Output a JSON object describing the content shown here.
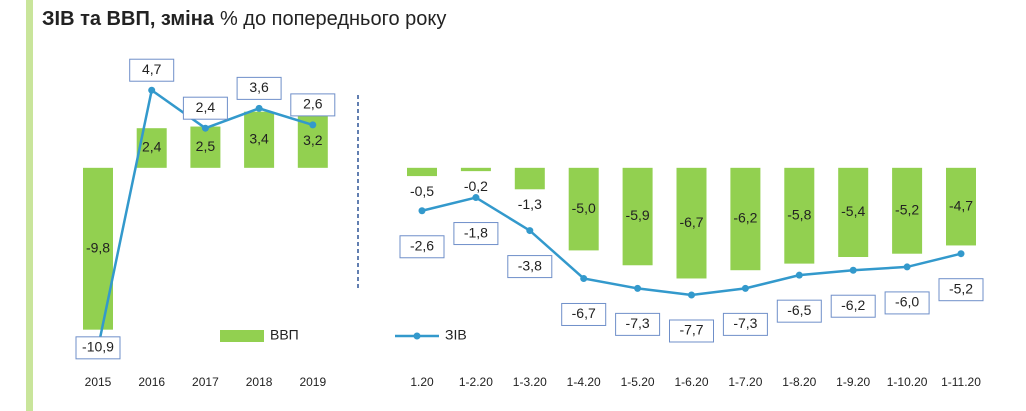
{
  "chart_data": {
    "type": "bar-line",
    "title": "ЗІВ та ВВП, зміна",
    "title_suffix": "% до попереднього року",
    "categories": [
      "2015",
      "2016",
      "2017",
      "2018",
      "2019",
      "1.20",
      "1-2.20",
      "1-3.20",
      "1-4.20",
      "1-5.20",
      "1-6.20",
      "1-7.20",
      "1-8.20",
      "1-9.20",
      "1-10.20",
      "1-11.20"
    ],
    "ylim": [
      -12,
      5.5
    ],
    "series": [
      {
        "name": "ВВП",
        "type": "bar",
        "color": "#92d050",
        "values": [
          -9.8,
          2.4,
          2.5,
          3.4,
          3.2,
          -0.5,
          -0.2,
          -1.3,
          -5.0,
          -5.9,
          -6.7,
          -6.2,
          -5.8,
          -5.4,
          -5.2,
          -4.7
        ],
        "value_labels": [
          "-9,8",
          "2,4",
          "2,5",
          "3,4",
          "3,2",
          "-0,5",
          "-0,2",
          "-1,3",
          "-5,0",
          "-5,9",
          "-6,7",
          "-6,2",
          "-5,8",
          "-5,4",
          "-5,2",
          "-4,7"
        ]
      },
      {
        "name": "ЗІВ",
        "type": "line",
        "color": "#3399cc",
        "values": [
          -10.9,
          4.7,
          2.4,
          3.6,
          2.6,
          -2.6,
          -1.8,
          -3.8,
          -6.7,
          -7.3,
          -7.7,
          -7.3,
          -6.5,
          -6.2,
          -6.0,
          -5.2
        ],
        "value_labels": [
          "-10,9",
          "4,7",
          "2,4",
          "3,6",
          "2,6",
          "-2,6",
          "-1,8",
          "-3,8",
          "-6,7",
          "-7,3",
          "-7,7",
          "-7,3",
          "-6,5",
          "-6,2",
          "-6,0",
          "-5,2"
        ]
      }
    ]
  }
}
